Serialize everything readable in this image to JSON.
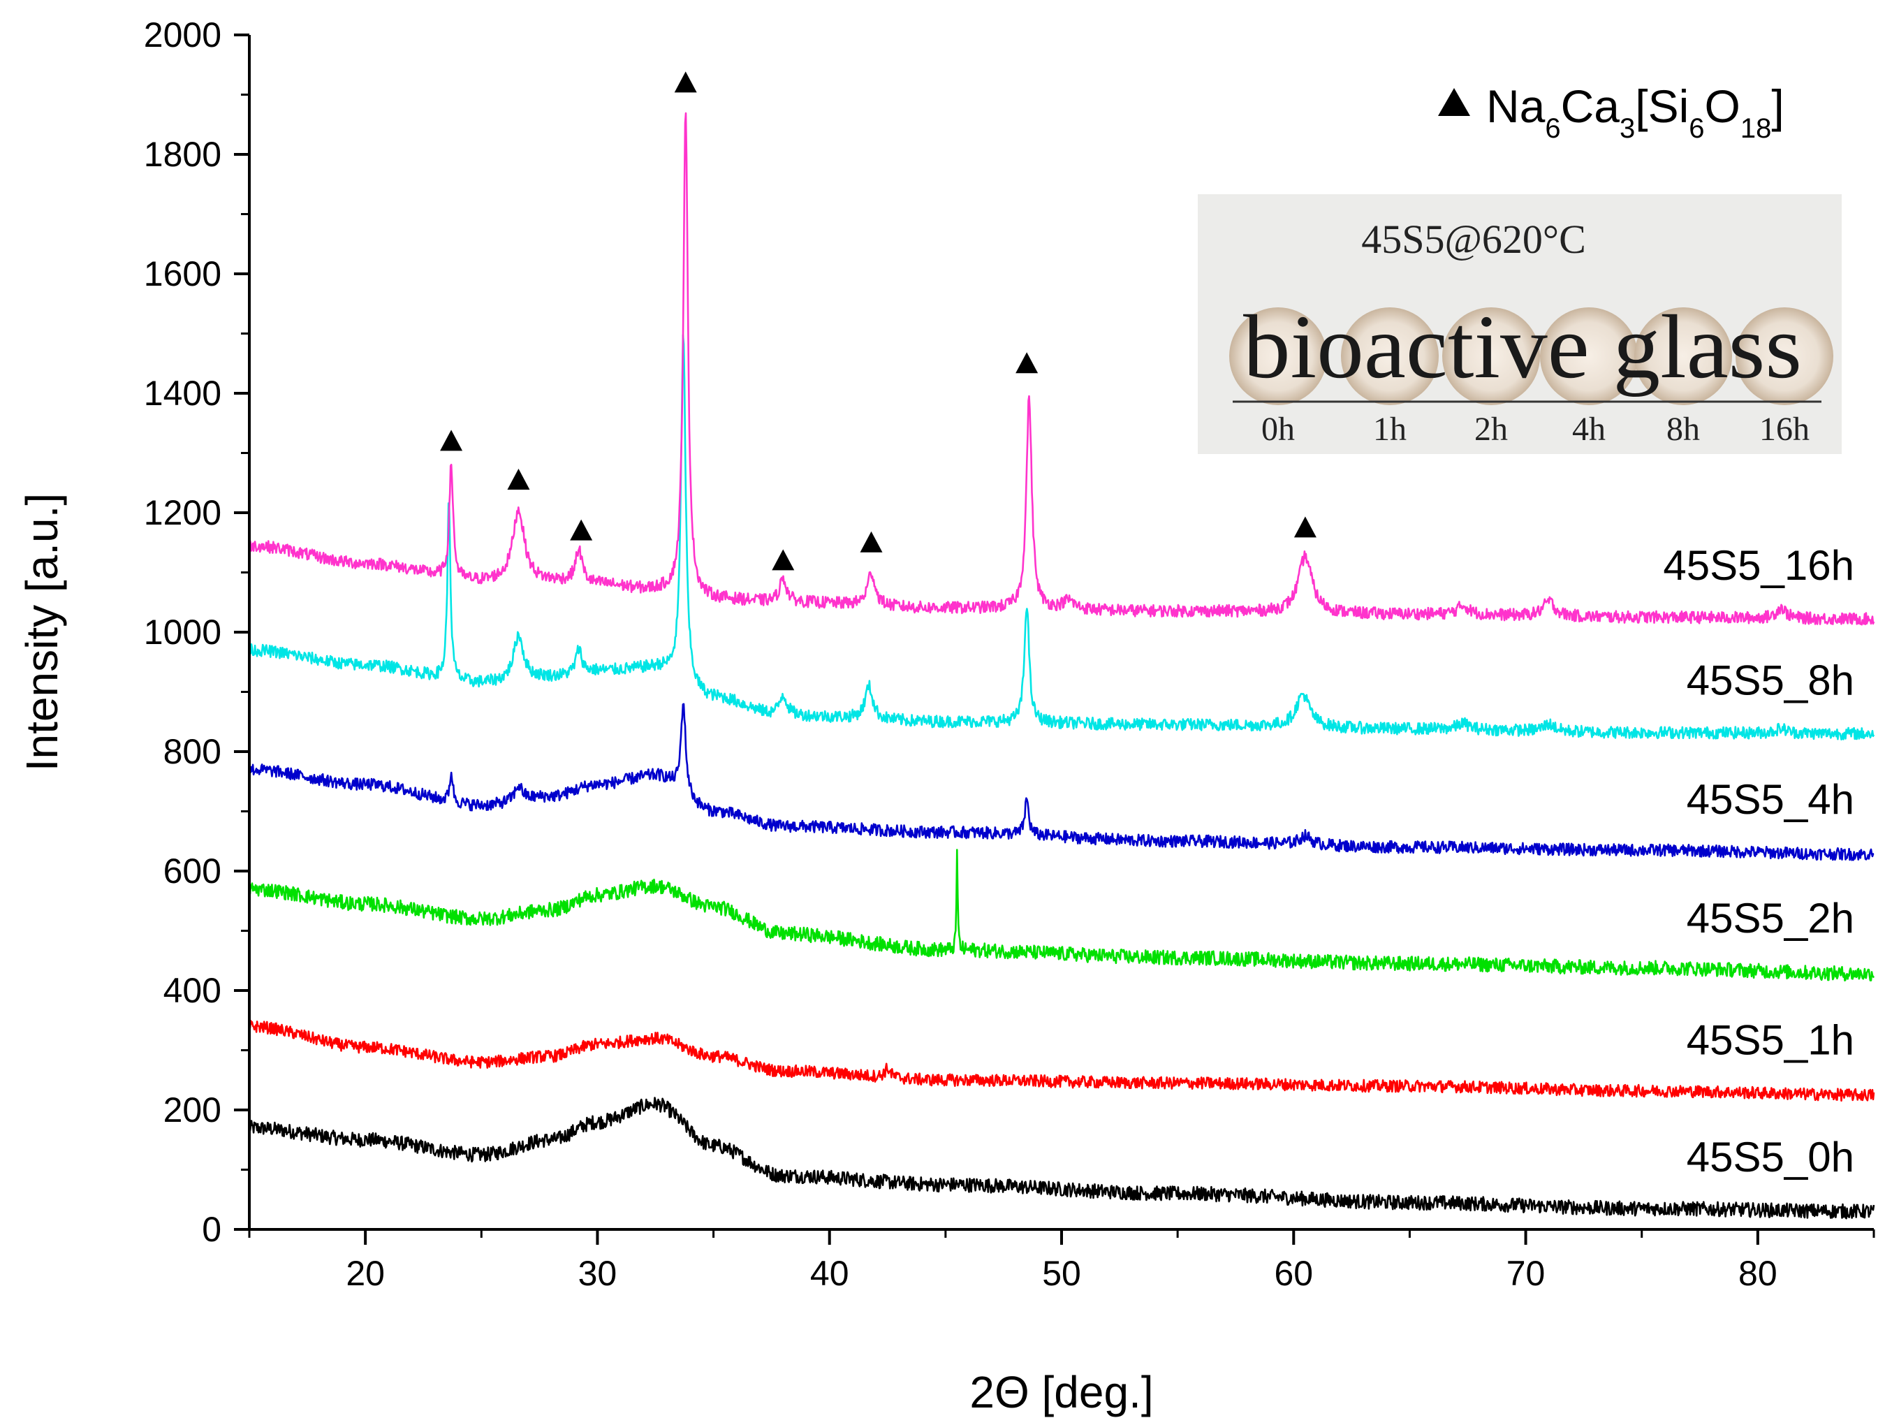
{
  "chart_data": {
    "type": "line",
    "title": "",
    "xlabel": "2Θ [deg.]",
    "ylabel": "Intensity [a.u.]",
    "xlim": [
      15,
      85
    ],
    "ylim": [
      0,
      2000
    ],
    "xticks": [
      20,
      30,
      40,
      50,
      60,
      70,
      80
    ],
    "yticks": [
      0,
      200,
      400,
      600,
      800,
      1000,
      1200,
      1400,
      1600,
      1800,
      2000
    ],
    "legend": {
      "marker": "triangle",
      "label_parts": [
        {
          "text": "Na",
          "sub": "6"
        },
        {
          "text": "Ca",
          "sub": "3"
        },
        {
          "text": "[Si",
          "sub": "6"
        },
        {
          "text": "O",
          "sub": "18"
        },
        {
          "text": "]",
          "sub": ""
        }
      ],
      "placement": "top-right"
    },
    "peak_markers": [
      {
        "x": 23.7,
        "y": 1320
      },
      {
        "x": 26.6,
        "y": 1255
      },
      {
        "x": 29.3,
        "y": 1170
      },
      {
        "x": 33.8,
        "y": 1920
      },
      {
        "x": 38.0,
        "y": 1120
      },
      {
        "x": 41.8,
        "y": 1150
      },
      {
        "x": 48.5,
        "y": 1450
      },
      {
        "x": 60.5,
        "y": 1175
      }
    ],
    "series": [
      {
        "name": "45S5_0h",
        "color": "#000000",
        "noise": 12,
        "baseline": [
          [
            15,
            170
          ],
          [
            20,
            150
          ],
          [
            25,
            125
          ],
          [
            28,
            150
          ],
          [
            30,
            180
          ],
          [
            32.5,
            210
          ],
          [
            35,
            140
          ],
          [
            38,
            90
          ],
          [
            45,
            75
          ],
          [
            55,
            60
          ],
          [
            65,
            45
          ],
          [
            75,
            35
          ],
          [
            85,
            30
          ]
        ],
        "peaks": []
      },
      {
        "name": "45S5_1h",
        "color": "#ff0000",
        "noise": 10,
        "baseline": [
          [
            15,
            340
          ],
          [
            20,
            305
          ],
          [
            25,
            280
          ],
          [
            28,
            290
          ],
          [
            30,
            310
          ],
          [
            32.5,
            320
          ],
          [
            35,
            290
          ],
          [
            38,
            265
          ],
          [
            45,
            250
          ],
          [
            55,
            245
          ],
          [
            65,
            240
          ],
          [
            75,
            232
          ],
          [
            85,
            225
          ]
        ],
        "peaks": [
          [
            42.5,
            15,
            0.15
          ]
        ]
      },
      {
        "name": "45S5_2h",
        "color": "#00e000",
        "noise": 12,
        "baseline": [
          [
            15,
            570
          ],
          [
            20,
            545
          ],
          [
            25,
            520
          ],
          [
            28,
            535
          ],
          [
            30,
            560
          ],
          [
            32.5,
            575
          ],
          [
            35,
            540
          ],
          [
            38,
            495
          ],
          [
            45,
            468
          ],
          [
            55,
            455
          ],
          [
            65,
            445
          ],
          [
            75,
            438
          ],
          [
            85,
            428
          ]
        ],
        "peaks": [
          [
            45.5,
            170,
            0.03
          ]
        ]
      },
      {
        "name": "45S5_4h",
        "color": "#0000cc",
        "noise": 10,
        "baseline": [
          [
            15,
            770
          ],
          [
            20,
            745
          ],
          [
            25,
            710
          ],
          [
            28,
            725
          ],
          [
            30,
            745
          ],
          [
            32.5,
            760
          ],
          [
            35,
            700
          ],
          [
            38,
            675
          ],
          [
            45,
            665
          ],
          [
            55,
            650
          ],
          [
            65,
            640
          ],
          [
            75,
            635
          ],
          [
            85,
            628
          ]
        ],
        "peaks": [
          [
            23.7,
            50,
            0.08
          ],
          [
            26.6,
            25,
            0.2
          ],
          [
            33.7,
            150,
            0.12
          ],
          [
            48.5,
            60,
            0.1
          ],
          [
            60.5,
            15,
            0.3
          ]
        ]
      },
      {
        "name": "45S5_8h",
        "color": "#00e5e5",
        "noise": 10,
        "baseline": [
          [
            15,
            970
          ],
          [
            20,
            945
          ],
          [
            25,
            915
          ],
          [
            28,
            925
          ],
          [
            30,
            935
          ],
          [
            32.5,
            940
          ],
          [
            35,
            890
          ],
          [
            38,
            860
          ],
          [
            45,
            850
          ],
          [
            55,
            845
          ],
          [
            65,
            838
          ],
          [
            75,
            832
          ],
          [
            85,
            830
          ]
        ],
        "peaks": [
          [
            23.6,
            300,
            0.08
          ],
          [
            26.6,
            75,
            0.25
          ],
          [
            29.2,
            40,
            0.15
          ],
          [
            33.7,
            580,
            0.12
          ],
          [
            38.0,
            35,
            0.2
          ],
          [
            41.7,
            55,
            0.2
          ],
          [
            48.5,
            200,
            0.12
          ],
          [
            60.4,
            55,
            0.35
          ],
          [
            67.3,
            10,
            0.3
          ],
          [
            71.0,
            12,
            0.3
          ],
          [
            81.0,
            8,
            0.3
          ]
        ]
      },
      {
        "name": "45S5_16h",
        "color": "#ff33cc",
        "noise": 10,
        "baseline": [
          [
            15,
            1145
          ],
          [
            20,
            1115
          ],
          [
            25,
            1085
          ],
          [
            28,
            1085
          ],
          [
            30,
            1080
          ],
          [
            32.5,
            1070
          ],
          [
            35,
            1055
          ],
          [
            38,
            1050
          ],
          [
            45,
            1040
          ],
          [
            55,
            1035
          ],
          [
            65,
            1030
          ],
          [
            75,
            1025
          ],
          [
            85,
            1022
          ]
        ],
        "peaks": [
          [
            23.7,
            190,
            0.1
          ],
          [
            26.6,
            120,
            0.3
          ],
          [
            29.2,
            55,
            0.18
          ],
          [
            33.8,
            810,
            0.12
          ],
          [
            38.0,
            40,
            0.18
          ],
          [
            41.8,
            55,
            0.2
          ],
          [
            48.6,
            355,
            0.14
          ],
          [
            50.3,
            15,
            0.3
          ],
          [
            60.5,
            95,
            0.35
          ],
          [
            67.3,
            15,
            0.3
          ],
          [
            71.0,
            25,
            0.3
          ],
          [
            81.0,
            18,
            0.25
          ]
        ]
      }
    ]
  },
  "inset": {
    "title": "45S5@620°C",
    "text": "bioactive glass",
    "ticks": [
      "0h",
      "1h",
      "2h",
      "4h",
      "8h",
      "16h"
    ]
  }
}
